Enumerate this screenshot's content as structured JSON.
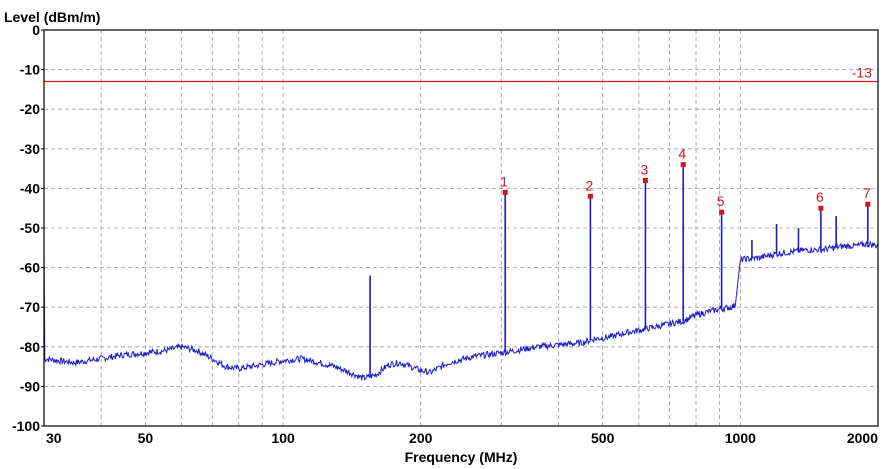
{
  "chart_data": {
    "type": "line",
    "title": "",
    "ylabel": "Level (dBm/m)",
    "xlabel": "Frequency (MHz)",
    "x_scale": "log",
    "xlim": [
      30,
      2000
    ],
    "ylim": [
      -100,
      0
    ],
    "grid": true,
    "x_ticks": [
      30,
      50,
      100,
      200,
      500,
      1000,
      2000
    ],
    "x_tick_labels": [
      "30",
      "50",
      "100",
      "200",
      "500",
      "1000",
      "2000"
    ],
    "x_minor_gridlines": [
      40,
      60,
      70,
      80,
      90,
      300,
      400,
      600,
      700,
      800,
      900
    ],
    "y_ticks": [
      0,
      -10,
      -20,
      -30,
      -40,
      -50,
      -60,
      -70,
      -80,
      -90,
      -100
    ],
    "y_tick_labels": [
      "0",
      "-10",
      "-20",
      "-30",
      "-40",
      "-50",
      "-60",
      "-70",
      "-80",
      "-90",
      "-100"
    ],
    "limit_line": {
      "value": -13,
      "label": "-13",
      "color": "#d01818"
    },
    "series_color": "#1a1acc",
    "marker_color": "#d01818",
    "series": [
      {
        "name": "",
        "noise_floor": [
          [
            30,
            -83
          ],
          [
            35,
            -84
          ],
          [
            40,
            -83
          ],
          [
            45,
            -82
          ],
          [
            50,
            -81.5
          ],
          [
            55,
            -81
          ],
          [
            60,
            -80
          ],
          [
            65,
            -81
          ],
          [
            70,
            -83
          ],
          [
            75,
            -85
          ],
          [
            80,
            -85.5
          ],
          [
            90,
            -84.5
          ],
          [
            100,
            -83.5
          ],
          [
            110,
            -83
          ],
          [
            120,
            -84
          ],
          [
            130,
            -85
          ],
          [
            140,
            -86.5
          ],
          [
            150,
            -88
          ],
          [
            160,
            -87
          ],
          [
            170,
            -84.5
          ],
          [
            180,
            -84
          ],
          [
            190,
            -85
          ],
          [
            200,
            -86
          ],
          [
            210,
            -86.5
          ],
          [
            230,
            -84
          ],
          [
            260,
            -82.5
          ],
          [
            300,
            -81.5
          ],
          [
            320,
            -81
          ],
          [
            360,
            -80
          ],
          [
            400,
            -79.5
          ],
          [
            450,
            -79
          ],
          [
            480,
            -78
          ],
          [
            520,
            -77.5
          ],
          [
            560,
            -76.5
          ],
          [
            620,
            -75.5
          ],
          [
            680,
            -74.5
          ],
          [
            750,
            -73.5
          ],
          [
            800,
            -72
          ],
          [
            860,
            -71
          ],
          [
            900,
            -70.5
          ],
          [
            950,
            -70
          ],
          [
            980,
            -69.5
          ],
          [
            1000,
            -58
          ],
          [
            1100,
            -57.5
          ],
          [
            1200,
            -56.5
          ],
          [
            1300,
            -56
          ],
          [
            1400,
            -55.5
          ],
          [
            1500,
            -55.5
          ],
          [
            1600,
            -55
          ],
          [
            1700,
            -54.5
          ],
          [
            1800,
            -54.5
          ],
          [
            1900,
            -54
          ],
          [
            2000,
            -54.5
          ]
        ],
        "spikes": [
          [
            155,
            -62
          ],
          [
            306,
            -41
          ],
          [
            470,
            -42
          ],
          [
            620,
            -38
          ],
          [
            750,
            -34
          ],
          [
            910,
            -46
          ],
          [
            1060,
            -53
          ],
          [
            1200,
            -49
          ],
          [
            1340,
            -50
          ],
          [
            1500,
            -45
          ],
          [
            1620,
            -47
          ],
          [
            1900,
            -44
          ]
        ]
      }
    ],
    "markers": [
      {
        "label": "1",
        "x": 306,
        "y": -41
      },
      {
        "label": "2",
        "x": 470,
        "y": -42
      },
      {
        "label": "3",
        "x": 620,
        "y": -38
      },
      {
        "label": "4",
        "x": 750,
        "y": -34
      },
      {
        "label": "5",
        "x": 910,
        "y": -46
      },
      {
        "label": "6",
        "x": 1500,
        "y": -45
      },
      {
        "label": "7",
        "x": 1900,
        "y": -44
      }
    ]
  }
}
